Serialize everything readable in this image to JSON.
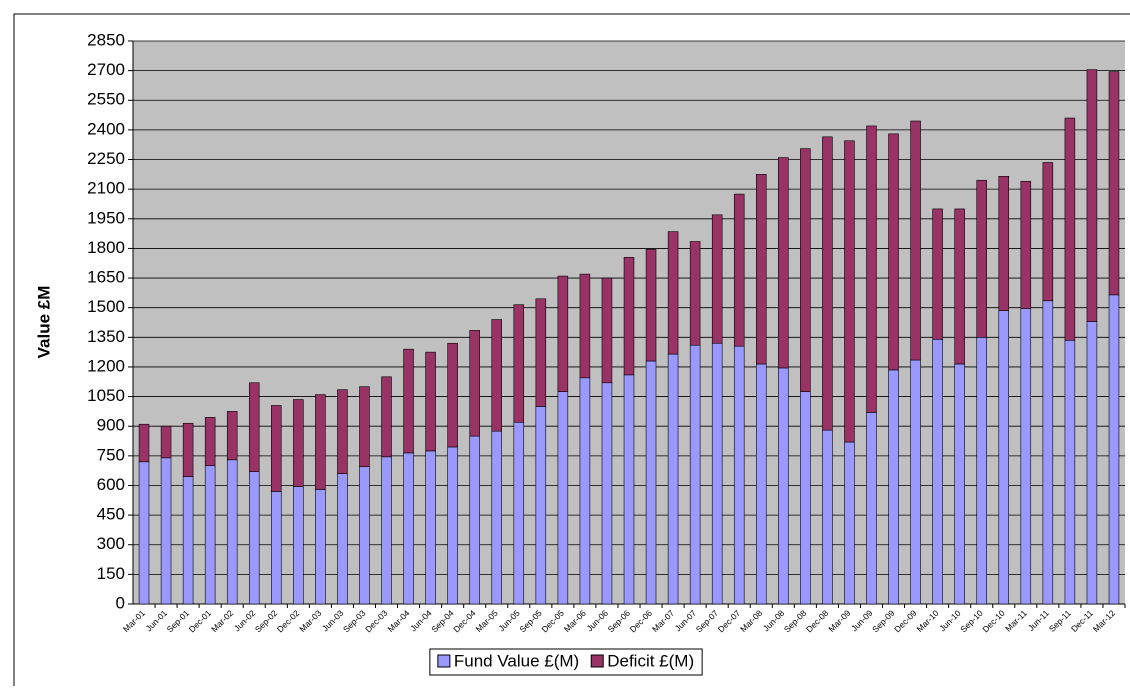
{
  "chart_data": {
    "type": "stacked-bar",
    "y_label": "Value £M",
    "categories": [
      "Mar-01",
      "Jun-01",
      "Sep-01",
      "Dec-01",
      "Mar-02",
      "Jun-02",
      "Sep-02",
      "Dec-02",
      "Mar-03",
      "Jun-03",
      "Sep-03",
      "Dec-03",
      "Mar-04",
      "Jun-04",
      "Sep-04",
      "Dec-04",
      "Mar-05",
      "Jun-05",
      "Sep-05",
      "Dec-05",
      "Mar-06",
      "Jun-06",
      "Sep-06",
      "Dec-06",
      "Mar-07",
      "Jun-07",
      "Sep-07",
      "Dec-07",
      "Mar-08",
      "Jun-08",
      "Sep-08",
      "Dec-08",
      "Mar-09",
      "Jun-09",
      "Sep-09",
      "Dec-09",
      "Mar-10",
      "Jun-10",
      "Sep-10",
      "Dec-10",
      "Mar-11",
      "Jun-11",
      "Sep-11",
      "Dec-11",
      "Mar-12"
    ],
    "series": [
      {
        "name": "Fund Value £(M)",
        "color": "#9999ff",
        "values": [
          720,
          740,
          645,
          700,
          730,
          670,
          570,
          595,
          580,
          660,
          695,
          745,
          765,
          775,
          795,
          850,
          875,
          920,
          1000,
          1075,
          1145,
          1120,
          1160,
          1230,
          1265,
          1310,
          1320,
          1305,
          1215,
          1195,
          1075,
          880,
          820,
          970,
          1185,
          1235,
          1340,
          1215,
          1350,
          1485,
          1495,
          1535,
          1335,
          1430,
          1565
        ]
      },
      {
        "name": "Deficit £(M)",
        "color": "#993366",
        "values": [
          190,
          160,
          270,
          245,
          245,
          450,
          435,
          440,
          480,
          425,
          405,
          405,
          525,
          500,
          525,
          535,
          565,
          595,
          545,
          585,
          525,
          530,
          595,
          565,
          620,
          525,
          650,
          770,
          960,
          1065,
          1230,
          1485,
          1525,
          1450,
          1195,
          1210,
          660,
          785,
          795,
          680,
          645,
          700,
          1125,
          1275,
          1130
        ]
      }
    ],
    "ylim": [
      0,
      2850
    ],
    "yticks": [
      0,
      150,
      300,
      450,
      600,
      750,
      900,
      1050,
      1200,
      1350,
      1500,
      1650,
      1800,
      1950,
      2100,
      2250,
      2400,
      2550,
      2700,
      2850
    ],
    "grid": true,
    "legend": "bottom"
  }
}
